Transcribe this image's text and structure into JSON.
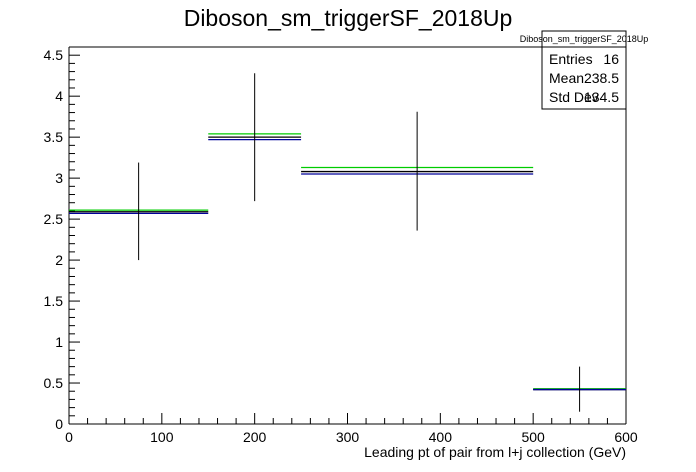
{
  "chart_data": {
    "type": "bar",
    "title": "Diboson_sm_triggerSF_2018Up",
    "xlabel": "Leading pt of pair from l+j collection (GeV)",
    "ylabel": "",
    "xlim": [
      0,
      600
    ],
    "ylim": [
      0,
      4.6
    ],
    "grid": false,
    "x_ticks": [
      "0",
      "100",
      "200",
      "300",
      "400",
      "500",
      "600"
    ],
    "y_ticks": [
      "0",
      "0.5",
      "1",
      "1.5",
      "2",
      "2.5",
      "3",
      "3.5",
      "4",
      "4.5"
    ],
    "bins": [
      {
        "xlow": 0,
        "xhigh": 150,
        "center": 75
      },
      {
        "xlow": 150,
        "xhigh": 250,
        "center": 200
      },
      {
        "xlow": 250,
        "xhigh": 500,
        "center": 375
      },
      {
        "xlow": 500,
        "xhigh": 600,
        "center": 550
      }
    ],
    "series": [
      {
        "color": "#00cc00",
        "values": [
          2.61,
          3.54,
          3.13,
          0.43
        ]
      },
      {
        "color": "#000000",
        "values": [
          2.59,
          3.5,
          3.08,
          0.42
        ]
      },
      {
        "color": "#000099",
        "values": [
          2.57,
          3.47,
          3.05,
          0.42
        ]
      }
    ],
    "error_bars": [
      {
        "center": 75,
        "value": 2.59,
        "low": 2.0,
        "high": 3.19
      },
      {
        "center": 200,
        "value": 3.5,
        "low": 2.72,
        "high": 4.28
      },
      {
        "center": 375,
        "value": 3.08,
        "low": 2.36,
        "high": 3.81
      },
      {
        "center": 550,
        "value": 0.42,
        "low": 0.15,
        "high": 0.7
      }
    ]
  },
  "stats_box": {
    "title": "Diboson_sm_triggerSF_2018Up",
    "rows": [
      {
        "label": "Entries",
        "value": "16"
      },
      {
        "label": "Mean",
        "value": "238.5"
      },
      {
        "label": "Std Dev",
        "value": "134.5"
      }
    ]
  }
}
